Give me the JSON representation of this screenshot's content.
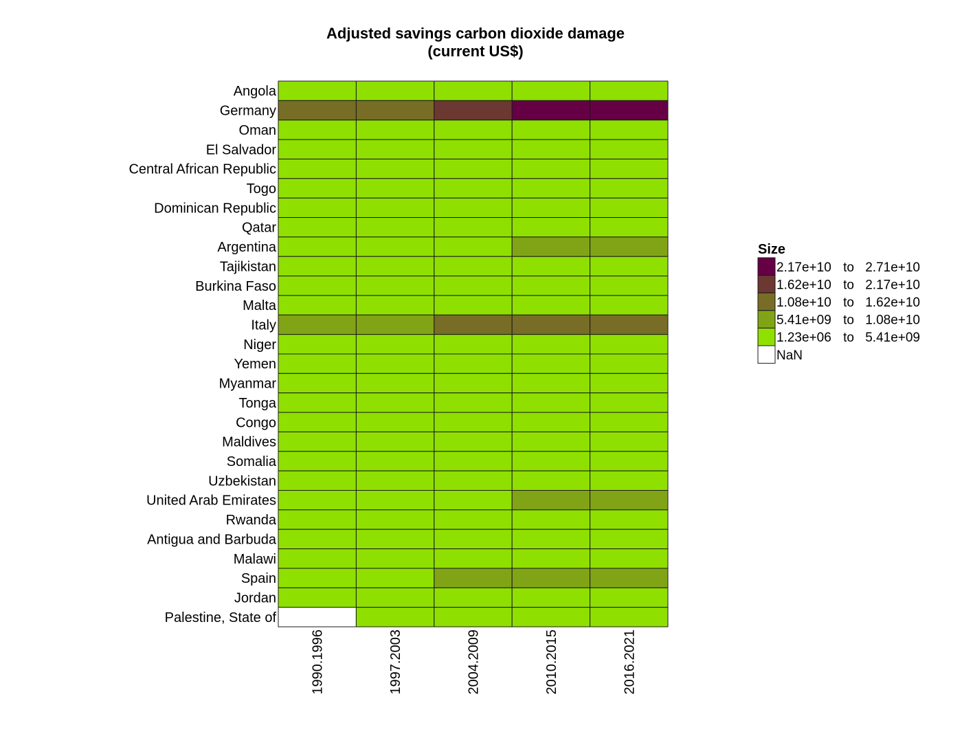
{
  "chart_data": {
    "type": "heatmap",
    "title": "Adjusted savings carbon dioxide damage",
    "subtitle": "(current US$)",
    "columns": [
      "1990.1996",
      "1997.2003",
      "2004.2009",
      "2010.2015",
      "2016.2021"
    ],
    "rows": [
      "Angola",
      "Germany",
      "Oman",
      "El Salvador",
      "Central African Republic",
      "Togo",
      "Dominican Republic",
      "Qatar",
      "Argentina",
      "Tajikistan",
      "Burkina Faso",
      "Malta",
      "Italy",
      "Niger",
      "Yemen",
      "Myanmar",
      "Tonga",
      "Congo",
      "Maldives",
      "Somalia",
      "Uzbekistan",
      "United Arab Emirates",
      "Rwanda",
      "Antigua and Barbuda",
      "Malawi",
      "Spain",
      "Jordan",
      "Palestine, State of"
    ],
    "cell_bins": [
      [
        0,
        0,
        0,
        0,
        0
      ],
      [
        2,
        2,
        3,
        4,
        4
      ],
      [
        0,
        0,
        0,
        0,
        0
      ],
      [
        0,
        0,
        0,
        0,
        0
      ],
      [
        0,
        0,
        0,
        0,
        0
      ],
      [
        0,
        0,
        0,
        0,
        0
      ],
      [
        0,
        0,
        0,
        0,
        0
      ],
      [
        0,
        0,
        0,
        0,
        0
      ],
      [
        0,
        0,
        0,
        1,
        1
      ],
      [
        0,
        0,
        0,
        0,
        0
      ],
      [
        0,
        0,
        0,
        0,
        0
      ],
      [
        0,
        0,
        0,
        0,
        0
      ],
      [
        1,
        1,
        2,
        2,
        2
      ],
      [
        0,
        0,
        0,
        0,
        0
      ],
      [
        0,
        0,
        0,
        0,
        0
      ],
      [
        0,
        0,
        0,
        0,
        0
      ],
      [
        0,
        0,
        0,
        0,
        0
      ],
      [
        0,
        0,
        0,
        0,
        0
      ],
      [
        0,
        0,
        0,
        0,
        0
      ],
      [
        0,
        0,
        0,
        0,
        0
      ],
      [
        0,
        0,
        0,
        0,
        0
      ],
      [
        0,
        0,
        0,
        1,
        1
      ],
      [
        0,
        0,
        0,
        0,
        0
      ],
      [
        0,
        0,
        0,
        0,
        0
      ],
      [
        0,
        0,
        0,
        0,
        0
      ],
      [
        0,
        0,
        1,
        1,
        1
      ],
      [
        0,
        0,
        0,
        0,
        0
      ],
      [
        -1,
        0,
        0,
        0,
        0
      ]
    ],
    "legend": {
      "title": "Size",
      "placement": "right",
      "bins": [
        {
          "from": "2.17e+10",
          "to": "2.71e+10",
          "color": "#660045"
        },
        {
          "from": "1.62e+10",
          "to": "2.17e+10",
          "color": "#6b3832"
        },
        {
          "from": "1.08e+10",
          "to": "1.62e+10",
          "color": "#786d26"
        },
        {
          "from": "5.41e+09",
          "to": "1.08e+10",
          "color": "#81a417"
        },
        {
          "from": "1.23e+06",
          "to": "5.41e+09",
          "color": "#8fe000"
        }
      ],
      "connector": "to",
      "nan_label": "NaN",
      "nan_color": "#ffffff"
    }
  }
}
